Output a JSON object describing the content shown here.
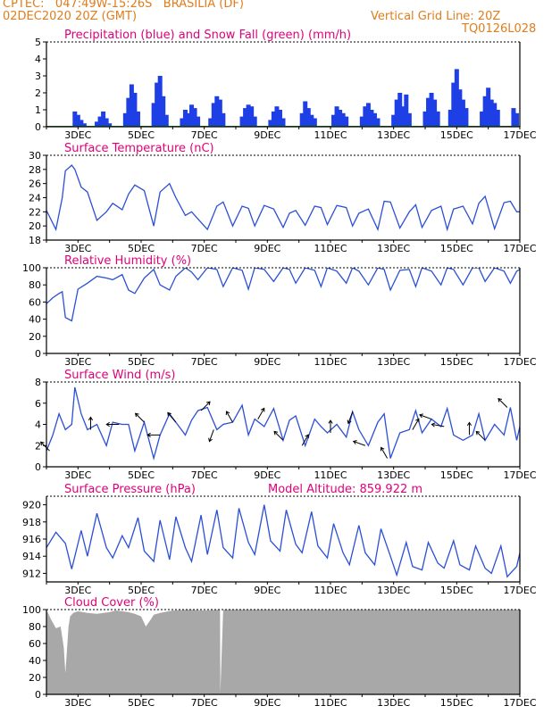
{
  "header": {
    "line1": "CPTEC:   047:49W-15:26S   BRASILIA (DF)",
    "line2": "02DEC2020 20Z (GMT)",
    "grid_note": "Vertical Grid Line: 20Z",
    "run_code": "TQ0126L028"
  },
  "colors": {
    "header": "#e07d1c",
    "title": "#e0007a",
    "line": "#2b4fd6",
    "precip": "#1f3fe6",
    "snow": "#10a010",
    "cloud": "#a8a8a8",
    "arrow": "#000000"
  },
  "x_ticks": [
    "3DEC",
    "5DEC",
    "7DEC",
    "9DEC",
    "11DEC",
    "13DEC",
    "15DEC",
    "17DEC"
  ],
  "chart_data": [
    {
      "type": "bar",
      "title": "Precipitation (blue) and Snow Fall (green) (mm/h)",
      "ylim": [
        0,
        5
      ],
      "yticks": [
        "0",
        "1",
        "2",
        "3",
        "4",
        "5"
      ],
      "series": [
        {
          "name": "Precipitation",
          "x": [
            2.9,
            3.0,
            3.1,
            3.2,
            3.6,
            3.7,
            3.8,
            3.9,
            4.0,
            4.5,
            4.6,
            4.7,
            4.8,
            4.9,
            5.4,
            5.5,
            5.6,
            5.7,
            5.8,
            6.3,
            6.4,
            6.5,
            6.6,
            6.7,
            6.8,
            7.2,
            7.3,
            7.4,
            7.5,
            7.6,
            8.2,
            8.3,
            8.4,
            8.5,
            8.6,
            9.1,
            9.2,
            9.3,
            9.4,
            9.5,
            10.1,
            10.2,
            10.3,
            10.4,
            10.5,
            11.1,
            11.2,
            11.3,
            11.4,
            11.5,
            12.0,
            12.1,
            12.2,
            12.3,
            12.4,
            12.5,
            13.0,
            13.1,
            13.2,
            13.3,
            13.4,
            13.5,
            14.0,
            14.1,
            14.2,
            14.3,
            14.4,
            14.8,
            14.9,
            15.0,
            15.1,
            15.2,
            15.3,
            15.8,
            15.9,
            16.0,
            16.1,
            16.2,
            16.3,
            16.8,
            16.9
          ],
          "values": [
            0.9,
            0.7,
            0.4,
            0.2,
            0.3,
            0.6,
            0.9,
            0.5,
            0.2,
            0.8,
            1.7,
            2.5,
            2.0,
            0.9,
            1.4,
            2.6,
            3.0,
            1.8,
            0.7,
            0.5,
            1.0,
            0.8,
            1.3,
            1.1,
            0.6,
            0.5,
            1.4,
            1.8,
            1.6,
            0.8,
            0.6,
            1.1,
            1.3,
            1.2,
            0.6,
            0.4,
            0.9,
            1.2,
            1.0,
            0.5,
            0.8,
            1.5,
            1.1,
            0.7,
            0.5,
            0.7,
            1.2,
            1.0,
            0.8,
            0.6,
            0.6,
            1.2,
            1.4,
            1.0,
            0.8,
            0.5,
            0.7,
            1.6,
            2.0,
            1.2,
            1.9,
            0.8,
            0.9,
            1.7,
            2.0,
            1.6,
            0.9,
            1.0,
            2.6,
            3.4,
            2.2,
            1.6,
            1.1,
            0.9,
            1.8,
            2.3,
            1.6,
            1.4,
            1.0,
            1.1,
            0.8
          ]
        },
        {
          "name": "Snow Fall",
          "x": [
            2.0,
            17.0
          ],
          "values": [
            0,
            0
          ]
        }
      ]
    },
    {
      "type": "line",
      "title": "Surface Temperature (nC)",
      "ylim": [
        18,
        30
      ],
      "yticks": [
        "18",
        "20",
        "22",
        "24",
        "26",
        "28",
        "30"
      ],
      "x": [
        2.0,
        2.3,
        2.5,
        2.6,
        2.8,
        2.9,
        3.1,
        3.3,
        3.6,
        3.9,
        4.1,
        4.4,
        4.6,
        4.8,
        5.1,
        5.4,
        5.6,
        5.9,
        6.1,
        6.4,
        6.6,
        6.8,
        7.1,
        7.4,
        7.6,
        7.9,
        8.2,
        8.4,
        8.6,
        8.9,
        9.2,
        9.5,
        9.7,
        9.9,
        10.2,
        10.5,
        10.7,
        10.9,
        11.2,
        11.5,
        11.7,
        11.9,
        12.2,
        12.5,
        12.7,
        12.9,
        13.2,
        13.5,
        13.7,
        13.9,
        14.2,
        14.5,
        14.7,
        14.9,
        15.2,
        15.5,
        15.7,
        15.9,
        16.2,
        16.5,
        16.7,
        16.9,
        17.0
      ],
      "values": [
        22.2,
        19.5,
        24.0,
        27.8,
        28.6,
        28.0,
        25.5,
        24.8,
        20.8,
        22.0,
        23.2,
        22.3,
        24.5,
        25.8,
        25.0,
        20.0,
        24.8,
        26.0,
        24.0,
        21.5,
        22.0,
        21.0,
        19.5,
        22.8,
        23.4,
        20.0,
        22.8,
        22.5,
        20.0,
        22.9,
        22.4,
        19.8,
        21.8,
        22.2,
        20.1,
        22.8,
        22.6,
        20.2,
        22.9,
        22.6,
        20.0,
        21.8,
        22.4,
        19.5,
        23.5,
        23.4,
        19.7,
        22.0,
        23.0,
        19.8,
        22.2,
        22.8,
        19.5,
        22.4,
        22.8,
        20.3,
        23.2,
        24.2,
        19.6,
        23.3,
        23.5,
        22.0,
        22.0
      ]
    },
    {
      "type": "line",
      "title": "Relative Humidity (%)",
      "ylim": [
        0,
        100
      ],
      "yticks": [
        "0",
        "20",
        "40",
        "60",
        "80",
        "100"
      ],
      "x": [
        2.0,
        2.2,
        2.4,
        2.5,
        2.6,
        2.8,
        3.0,
        3.3,
        3.6,
        3.9,
        4.1,
        4.4,
        4.6,
        4.8,
        5.1,
        5.4,
        5.6,
        5.9,
        6.1,
        6.4,
        6.6,
        6.8,
        7.1,
        7.4,
        7.6,
        7.9,
        8.2,
        8.4,
        8.6,
        8.9,
        9.2,
        9.5,
        9.7,
        9.9,
        10.2,
        10.5,
        10.7,
        10.9,
        11.2,
        11.5,
        11.7,
        11.9,
        12.2,
        12.5,
        12.7,
        12.9,
        13.2,
        13.5,
        13.7,
        13.9,
        14.2,
        14.5,
        14.7,
        14.9,
        15.2,
        15.5,
        15.7,
        15.9,
        16.2,
        16.5,
        16.7,
        16.9,
        17.0
      ],
      "values": [
        58,
        65,
        70,
        72,
        42,
        38,
        75,
        82,
        90,
        88,
        86,
        92,
        74,
        70,
        88,
        98,
        80,
        74,
        90,
        100,
        95,
        86,
        100,
        98,
        78,
        100,
        97,
        75,
        100,
        98,
        84,
        100,
        98,
        82,
        100,
        97,
        78,
        100,
        96,
        82,
        100,
        96,
        80,
        100,
        98,
        74,
        97,
        98,
        78,
        100,
        96,
        80,
        100,
        98,
        80,
        100,
        100,
        84,
        100,
        96,
        82,
        96,
        98
      ]
    },
    {
      "type": "line",
      "title": "Surface Wind (m/s)",
      "ylim": [
        0,
        8
      ],
      "yticks": [
        "0",
        "2",
        "4",
        "6",
        "8"
      ],
      "x": [
        2.0,
        2.2,
        2.4,
        2.6,
        2.8,
        2.9,
        3.1,
        3.3,
        3.6,
        3.9,
        4.1,
        4.4,
        4.6,
        4.8,
        5.1,
        5.4,
        5.6,
        5.9,
        6.1,
        6.4,
        6.6,
        6.8,
        7.1,
        7.4,
        7.6,
        7.9,
        8.2,
        8.4,
        8.6,
        8.9,
        9.2,
        9.5,
        9.7,
        9.9,
        10.2,
        10.5,
        10.7,
        10.9,
        11.2,
        11.5,
        11.7,
        11.9,
        12.2,
        12.5,
        12.7,
        12.9,
        13.2,
        13.5,
        13.7,
        13.9,
        14.2,
        14.5,
        14.7,
        14.9,
        15.2,
        15.5,
        15.7,
        15.9,
        16.2,
        16.5,
        16.7,
        16.9,
        17.0
      ],
      "values": [
        1.5,
        3.0,
        5.0,
        3.5,
        4.0,
        7.5,
        5.0,
        3.5,
        4.0,
        2.0,
        4.2,
        4.0,
        4.0,
        1.5,
        4.2,
        0.8,
        3.0,
        5.0,
        4.2,
        3.0,
        4.4,
        5.3,
        5.6,
        3.5,
        4.0,
        4.2,
        5.8,
        3.0,
        4.5,
        3.8,
        5.5,
        2.5,
        4.4,
        4.8,
        2.0,
        4.5,
        3.8,
        3.2,
        4.0,
        2.8,
        5.2,
        3.5,
        2.0,
        4.2,
        5.0,
        0.8,
        3.2,
        3.5,
        5.3,
        3.2,
        4.5,
        3.8,
        5.5,
        3.0,
        2.5,
        3.0,
        5.0,
        2.5,
        4.0,
        3.0,
        5.6,
        2.5,
        3.8
      ],
      "wind_vectors": [
        {
          "x": 2.1,
          "dir_deg": 225
        },
        {
          "x": 3.4,
          "dir_deg": 270
        },
        {
          "x": 4.3,
          "dir_deg": 180
        },
        {
          "x": 5.1,
          "dir_deg": 225
        },
        {
          "x": 5.6,
          "dir_deg": 180
        },
        {
          "x": 6.1,
          "dir_deg": 230
        },
        {
          "x": 6.9,
          "dir_deg": 315
        },
        {
          "x": 7.3,
          "dir_deg": 110
        },
        {
          "x": 7.9,
          "dir_deg": 240
        },
        {
          "x": 8.7,
          "dir_deg": 300
        },
        {
          "x": 9.5,
          "dir_deg": 225
        },
        {
          "x": 10.1,
          "dir_deg": 300
        },
        {
          "x": 11.0,
          "dir_deg": 270
        },
        {
          "x": 11.7,
          "dir_deg": 110
        },
        {
          "x": 12.1,
          "dir_deg": 200
        },
        {
          "x": 12.8,
          "dir_deg": 240
        },
        {
          "x": 13.6,
          "dir_deg": 300
        },
        {
          "x": 14.2,
          "dir_deg": 200
        },
        {
          "x": 14.6,
          "dir_deg": 190
        },
        {
          "x": 15.4,
          "dir_deg": 270
        },
        {
          "x": 15.9,
          "dir_deg": 225
        },
        {
          "x": 16.6,
          "dir_deg": 225
        }
      ]
    },
    {
      "type": "line",
      "title": "Surface Pressure (hPa)",
      "annotation": "Model Altitude: 859.922 m",
      "ylim": [
        911,
        921
      ],
      "yticks": [
        "912",
        "914",
        "916",
        "918",
        "920"
      ],
      "x": [
        2.0,
        2.3,
        2.6,
        2.8,
        3.1,
        3.3,
        3.6,
        3.9,
        4.1,
        4.4,
        4.6,
        4.9,
        5.1,
        5.4,
        5.6,
        5.9,
        6.1,
        6.4,
        6.6,
        6.9,
        7.1,
        7.4,
        7.6,
        7.9,
        8.1,
        8.4,
        8.6,
        8.9,
        9.1,
        9.4,
        9.6,
        9.9,
        10.1,
        10.4,
        10.6,
        10.9,
        11.1,
        11.4,
        11.6,
        11.9,
        12.1,
        12.4,
        12.6,
        12.9,
        13.1,
        13.4,
        13.6,
        13.9,
        14.1,
        14.4,
        14.6,
        14.9,
        15.1,
        15.4,
        15.6,
        15.9,
        16.1,
        16.4,
        16.6,
        16.9,
        17.0
      ],
      "values": [
        915.0,
        916.8,
        915.5,
        912.5,
        917.0,
        914.0,
        919.0,
        915.0,
        913.8,
        916.4,
        915.0,
        918.5,
        914.6,
        913.4,
        918.2,
        913.6,
        918.6,
        915.0,
        913.4,
        918.8,
        914.2,
        919.4,
        915.0,
        913.8,
        919.6,
        915.6,
        914.2,
        920.0,
        915.8,
        914.6,
        919.4,
        915.4,
        914.4,
        919.2,
        915.2,
        913.8,
        917.8,
        914.4,
        913.0,
        917.6,
        914.4,
        913.0,
        917.2,
        914.0,
        911.8,
        915.6,
        912.8,
        912.4,
        915.6,
        913.2,
        912.6,
        915.8,
        913.0,
        912.4,
        915.2,
        912.6,
        912.0,
        915.2,
        911.6,
        912.8,
        914.4
      ]
    },
    {
      "type": "area",
      "title": "Cloud Cover (%)",
      "ylim": [
        0,
        100
      ],
      "yticks": [
        "0",
        "20",
        "40",
        "60",
        "80",
        "100"
      ],
      "x": [
        2.0,
        2.15,
        2.3,
        2.45,
        2.55,
        2.6,
        2.7,
        2.75,
        2.85,
        3.0,
        3.3,
        3.6,
        4.0,
        4.2,
        4.4,
        4.6,
        4.8,
        5.0,
        5.15,
        5.3,
        5.4,
        5.6,
        6.0,
        6.5,
        7.0,
        7.5,
        7.51,
        7.6,
        8.0,
        9.0,
        10.0,
        11.0,
        12.0,
        13.0,
        14.0,
        15.0,
        16.0,
        17.0
      ],
      "values": [
        100,
        88,
        78,
        80,
        55,
        25,
        80,
        92,
        96,
        98,
        96,
        95,
        97,
        99,
        98,
        97,
        95,
        92,
        80,
        88,
        94,
        96,
        99,
        100,
        99,
        100,
        2,
        100,
        100,
        100,
        100,
        100,
        100,
        100,
        100,
        100,
        100,
        100
      ]
    }
  ]
}
